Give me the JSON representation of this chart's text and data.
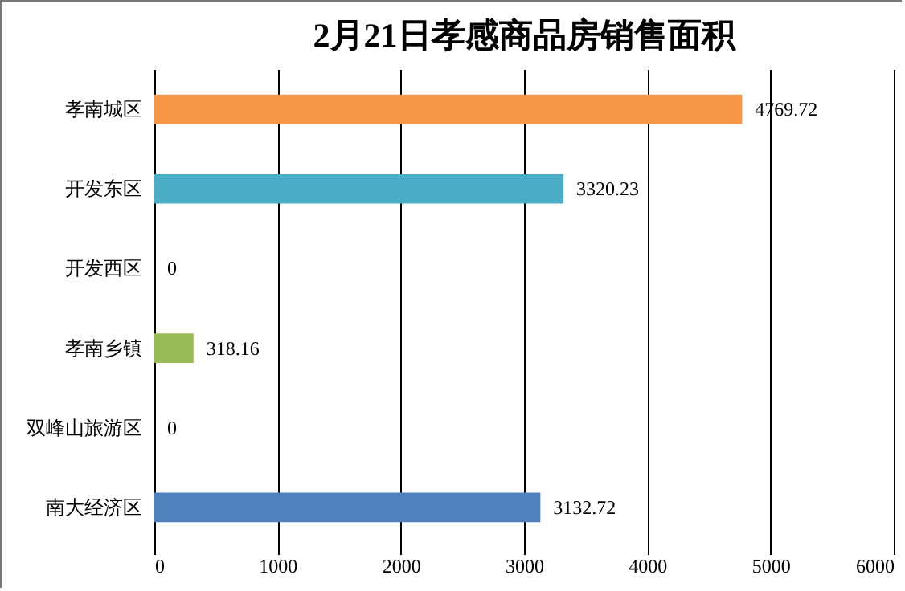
{
  "chart_data": {
    "type": "bar",
    "orientation": "horizontal",
    "title": "2月21日孝感商品房销售面积",
    "categories": [
      "孝南城区",
      "开发东区",
      "开发西区",
      "孝南乡镇",
      "双峰山旅游区",
      "南大经济区"
    ],
    "values": [
      4769.72,
      3320.23,
      0,
      318.16,
      0,
      3132.72
    ],
    "colors": [
      "#f79646",
      "#4bacc6",
      "#4bacc6",
      "#9bbb59",
      "#4f81bd",
      "#4f81bd"
    ],
    "xlim": [
      0,
      6000
    ],
    "xticks": [
      0,
      1000,
      2000,
      3000,
      4000,
      5000,
      6000
    ],
    "grid": "x",
    "data_labels": true
  }
}
